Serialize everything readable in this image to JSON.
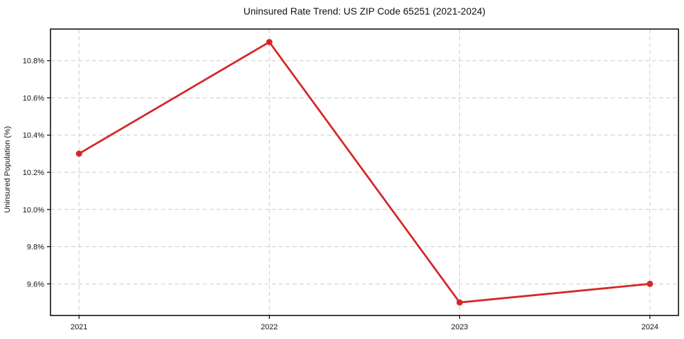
{
  "chart_data": {
    "type": "line",
    "title": "Uninsured Rate Trend: US ZIP Code 65251 (2021-2024)",
    "xlabel": "",
    "ylabel": "Uninsured Population (%)",
    "x": [
      2021,
      2022,
      2023,
      2024
    ],
    "categories": [
      "2021",
      "2022",
      "2023",
      "2024"
    ],
    "series": [
      {
        "name": "Uninsured rate",
        "values": [
          10.3,
          10.9,
          9.5,
          9.6
        ]
      }
    ],
    "x_tick_labels": [
      "2021",
      "2022",
      "2023",
      "2024"
    ],
    "y_ticks": [
      9.6,
      9.8,
      10.0,
      10.2,
      10.4,
      10.6,
      10.8
    ],
    "y_tick_labels": [
      "9.6%",
      "9.8%",
      "10.0%",
      "10.2%",
      "10.4%",
      "10.6%",
      "10.8%"
    ],
    "xlim": [
      2020.85,
      2024.15
    ],
    "ylim": [
      9.43,
      10.97
    ],
    "grid": true,
    "grid_style": "dashed",
    "legend": "none",
    "colors": {
      "line": "#d62728",
      "marker": "#d62728",
      "grid": "#cccccc",
      "spine": "#000000",
      "text": "#111111",
      "background": "#ffffff"
    }
  }
}
